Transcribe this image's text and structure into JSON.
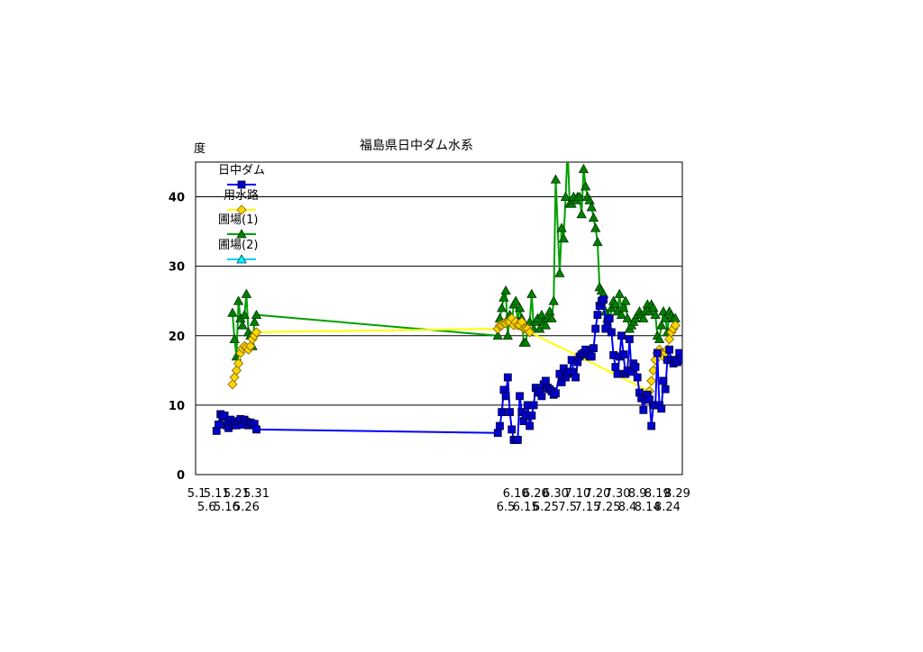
{
  "chart_data": {
    "type": "line",
    "title": "福島県日中ダム水系",
    "ylabel": "度",
    "xlabel": "",
    "ylim": [
      0,
      45
    ],
    "yticks": [
      0,
      10,
      20,
      30,
      40
    ],
    "grid": true,
    "legend_position": "top-left",
    "x_domain": [
      "5.1",
      "8.31"
    ],
    "x_ticks_upper": [
      "5.1",
      "5.11",
      "5.21",
      "5.31",
      "6.10",
      "6.20",
      "6.30",
      "7.10",
      "7.20",
      "7.30",
      "8.9",
      "8.19",
      "8.29"
    ],
    "x_ticks_lower": [
      "5.6",
      "5.16",
      "5.26",
      "6.5",
      "6.15",
      "6.25",
      "7.5",
      "7.15",
      "7.25",
      "8.4",
      "8.14",
      "8.24"
    ],
    "colors": {
      "s1_line": "#0000ff",
      "s1_marker": "#0000cc",
      "s2_line": "#ffff00",
      "s2_marker": "#ffd700",
      "s3_line": "#00a000",
      "s3_marker": "#008000",
      "s4_line": "#00ccff",
      "s4_marker": "#00ffff"
    },
    "series": [
      {
        "name": "日中ダム",
        "marker": "square",
        "x": [
          "5.11",
          "5.12",
          "5.13",
          "5.14",
          "5.15",
          "5.16",
          "5.17",
          "5.18",
          "5.19",
          "5.20",
          "5.21",
          "5.22",
          "5.23",
          "5.24",
          "5.25",
          "5.26",
          "5.27",
          "5.28",
          "5.29",
          "5.30",
          "5.31",
          "6.1",
          "6.2",
          "6.3",
          "6.4",
          "6.5",
          "6.6",
          "6.7",
          "6.8",
          "6.9",
          "6.10",
          "6.11",
          "6.12",
          "6.13",
          "6.14",
          "6.15",
          "6.16",
          "6.17",
          "6.18",
          "6.19",
          "6.20",
          "6.21",
          "6.22",
          "6.23",
          "6.24",
          "6.25",
          "6.26",
          "6.27",
          "6.28",
          "6.29",
          "6.30",
          "7.1",
          "7.2",
          "7.3",
          "7.4",
          "7.5",
          "7.6",
          "7.7",
          "7.8",
          "7.9",
          "7.10",
          "7.11",
          "7.12",
          "7.13",
          "7.14",
          "7.15",
          "7.16",
          "7.17",
          "7.18",
          "7.19",
          "7.20",
          "7.21",
          "7.22",
          "7.23",
          "7.24",
          "7.25",
          "7.26",
          "7.27",
          "7.28",
          "7.29",
          "7.30",
          "7.31",
          "8.1",
          "8.2",
          "8.3",
          "8.4",
          "8.5",
          "8.6",
          "8.7",
          "8.8",
          "8.9",
          "8.10",
          "8.11",
          "8.12",
          "8.13",
          "8.14",
          "8.15",
          "8.16",
          "8.17",
          "8.18",
          "8.19",
          "8.20",
          "8.21",
          "8.22",
          "8.23",
          "8.24",
          "8.25",
          "8.26",
          "8.27",
          "8.28",
          "8.29",
          "8.30",
          "8.31"
        ],
        "values": [
          6.3,
          7.2,
          8.7,
          8.3,
          8.5,
          7.1,
          6.7,
          7.9,
          7.1,
          7.3,
          7.1,
          7.7,
          8.0,
          7.2,
          7.9,
          7.6,
          7.1,
          7.5,
          7.3,
          7.3,
          6.5,
          6.0,
          7.0,
          9.0,
          12.2,
          11.3,
          14.0,
          9.0,
          6.5,
          5.0,
          5.0,
          5.0,
          11.3,
          9.0,
          7.7,
          8.5,
          10.0,
          7.0,
          8.5,
          10.0,
          12.5,
          11.8,
          12.0,
          11.3,
          13.0,
          13.5,
          12.5,
          12.3,
          12.0,
          11.5,
          11.7,
          14.5,
          13.3,
          15.3,
          14.0,
          14.5,
          14.8,
          16.5,
          14.8,
          14.0,
          16.2,
          17.0,
          17.3,
          17.5,
          18.0,
          17.5,
          17.0,
          17.0,
          18.2,
          21.0,
          23.0,
          24.3,
          25.0,
          25.2,
          21.0,
          22.0,
          22.5,
          20.5,
          17.2,
          15.5,
          14.5,
          17.0,
          20.0,
          17.3,
          14.5,
          15.0,
          19.5,
          14.8,
          16.0,
          15.5,
          14.0,
          11.8,
          11.0,
          9.3,
          10.8,
          11.5,
          10.8,
          7.0,
          10.0,
          10.0,
          17.5,
          10.0,
          9.5,
          13.5,
          12.3,
          16.5,
          18.0,
          16.5,
          16.0,
          16.5,
          16.2,
          17.5,
          16.5
        ]
      },
      {
        "name": "用水路",
        "marker": "diamond",
        "x": [
          "5.19",
          "5.20",
          "5.21",
          "5.22",
          "5.23",
          "5.24",
          "5.25",
          "5.26",
          "5.27",
          "5.28",
          "5.29",
          "5.30",
          "5.31",
          "6.1",
          "6.2",
          "6.3",
          "6.4",
          "6.5",
          "6.6",
          "6.7",
          "6.8",
          "6.9",
          "6.10",
          "6.11",
          "6.12",
          "6.13",
          "6.14",
          "6.15",
          "6.16",
          "6.17",
          "8.15",
          "8.16",
          "8.17",
          "8.18",
          "8.19",
          "8.20",
          "8.21",
          "8.22",
          "8.23",
          "8.24",
          "8.25",
          "8.26",
          "8.27",
          "8.28"
        ],
        "values": [
          13.0,
          14.0,
          15.0,
          16.0,
          17.5,
          18.2,
          18.5,
          18.3,
          18.0,
          18.5,
          19.5,
          20.0,
          20.5,
          21.0,
          21.5,
          21.5,
          21.8,
          21.8,
          22.0,
          22.0,
          22.5,
          21.5,
          22.0,
          21.5,
          21.5,
          22.0,
          21.0,
          21.0,
          21.0,
          20.5,
          12.0,
          13.5,
          15.0,
          16.5,
          17.5,
          18.0,
          17.5,
          17.0,
          17.5,
          18.0,
          19.5,
          20.5,
          21.0,
          21.5
        ]
      },
      {
        "name": "圃場(1)",
        "marker": "triangle",
        "x": [
          "5.19",
          "5.20",
          "5.21",
          "5.22",
          "5.23",
          "5.24",
          "5.25",
          "5.26",
          "5.27",
          "5.28",
          "5.29",
          "5.30",
          "5.31",
          "6.1",
          "6.2",
          "6.3",
          "6.4",
          "6.5",
          "6.6",
          "6.7",
          "6.8",
          "6.9",
          "6.10",
          "6.11",
          "6.12",
          "6.13",
          "6.14",
          "6.15",
          "6.16",
          "6.17",
          "6.18",
          "6.19",
          "6.20",
          "6.21",
          "6.22",
          "6.23",
          "6.24",
          "6.25",
          "6.26",
          "6.27",
          "6.28",
          "6.29",
          "6.30",
          "7.1",
          "7.2",
          "7.3",
          "7.4",
          "7.5",
          "7.6",
          "7.7",
          "7.8",
          "7.9",
          "7.10",
          "7.11",
          "7.12",
          "7.13",
          "7.14",
          "7.15",
          "7.16",
          "7.17",
          "7.18",
          "7.19",
          "7.20",
          "7.21",
          "7.22",
          "7.23",
          "7.24",
          "7.25",
          "7.26",
          "7.27",
          "7.28",
          "7.29",
          "7.30",
          "7.31",
          "8.1",
          "8.2",
          "8.3",
          "8.4",
          "8.5",
          "8.6",
          "8.7",
          "8.8",
          "8.9",
          "8.10",
          "8.11",
          "8.12",
          "8.13",
          "8.14",
          "8.15",
          "8.16",
          "8.17",
          "8.18",
          "8.19",
          "8.20",
          "8.21",
          "8.22",
          "8.23",
          "8.24",
          "8.25",
          "8.26",
          "8.27",
          "8.28"
        ],
        "values": [
          23.3,
          19.5,
          17.0,
          25.0,
          22.5,
          21.5,
          23.0,
          26.0,
          20.5,
          20.0,
          18.5,
          22.0,
          23.0,
          20.0,
          22.5,
          24.0,
          25.5,
          26.5,
          20.0,
          23.0,
          22.0,
          24.5,
          25.0,
          22.0,
          24.0,
          22.5,
          19.0,
          19.0,
          21.0,
          22.0,
          26.0,
          21.0,
          22.0,
          22.5,
          21.0,
          23.0,
          22.0,
          21.5,
          22.5,
          23.5,
          22.5,
          25.0,
          42.5,
          29.0,
          35.5,
          34.0,
          40.0,
          47.0,
          39.0,
          39.0,
          40.0,
          39.5,
          40.0,
          40.0,
          37.5,
          44.0,
          41.5,
          40.0,
          39.5,
          38.5,
          37.0,
          35.5,
          33.5,
          27.0,
          26.5,
          26.0,
          23.5,
          22.5,
          21.0,
          24.0,
          25.0,
          24.5,
          23.5,
          26.0,
          23.0,
          24.0,
          25.0,
          22.5,
          21.0,
          21.5,
          22.0,
          22.5,
          23.0,
          23.5,
          23.0,
          22.5,
          23.5,
          24.5,
          23.5,
          24.5,
          24.0,
          23.0,
          20.0,
          19.5,
          21.5,
          23.5,
          22.5,
          20.5,
          23.5,
          23.0,
          22.5,
          22.5
        ]
      },
      {
        "name": "圃場(2)",
        "marker": "triangle",
        "x": [],
        "values": []
      }
    ]
  }
}
